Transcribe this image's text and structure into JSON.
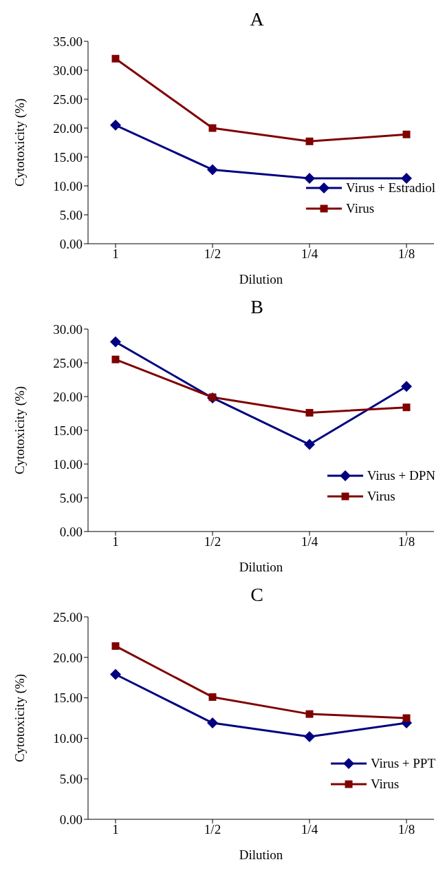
{
  "chart_data": [
    {
      "type": "line",
      "title": "A",
      "xlabel": "Dilution",
      "ylabel": "Cytotoxicity (%)",
      "categories": [
        "1",
        "1/2",
        "1/4",
        "1/8"
      ],
      "ylim": [
        0,
        35
      ],
      "yticks": [
        {
          "value": 0,
          "label": "0.00"
        },
        {
          "value": 5,
          "label": "5.00"
        },
        {
          "value": 10,
          "label": "10.00"
        },
        {
          "value": 15,
          "label": "15.00"
        },
        {
          "value": 20,
          "label": "20.00"
        },
        {
          "value": 25,
          "label": "25.00"
        },
        {
          "value": 30,
          "label": "30.00"
        },
        {
          "value": 35,
          "label": "35.00"
        }
      ],
      "grid": false,
      "legend": "bottom right",
      "line_style": "solid",
      "series": [
        {
          "name": "Virus + Estradiol",
          "color": "#000080",
          "marker": "diamond",
          "values": [
            20.5,
            12.8,
            11.3,
            11.3
          ]
        },
        {
          "name": "Virus",
          "color": "#800000",
          "marker": "square",
          "values": [
            32.0,
            20.0,
            17.7,
            18.9
          ]
        }
      ]
    },
    {
      "type": "line",
      "title": "B",
      "xlabel": "Dilution",
      "ylabel": "Cytotoxicity (%)",
      "categories": [
        "1",
        "1/2",
        "1/4",
        "1/8"
      ],
      "ylim": [
        0,
        30
      ],
      "yticks": [
        {
          "value": 0,
          "label": "0.00"
        },
        {
          "value": 5,
          "label": "5.00"
        },
        {
          "value": 10,
          "label": "10.00"
        },
        {
          "value": 15,
          "label": "15.00"
        },
        {
          "value": 20,
          "label": "20.00"
        },
        {
          "value": 25,
          "label": "25.00"
        },
        {
          "value": 30,
          "label": "30.00"
        }
      ],
      "grid": false,
      "legend": "bottom right",
      "line_style": "solid",
      "series": [
        {
          "name": "Virus + DPN",
          "color": "#000080",
          "marker": "diamond",
          "values": [
            28.1,
            19.8,
            12.9,
            21.5
          ]
        },
        {
          "name": "Virus",
          "color": "#800000",
          "marker": "square",
          "values": [
            25.5,
            19.9,
            17.6,
            18.4
          ]
        }
      ]
    },
    {
      "type": "line",
      "title": "C",
      "xlabel": "Dilution",
      "ylabel": "Cytotoxicity (%)",
      "categories": [
        "1",
        "1/2",
        "1/4",
        "1/8"
      ],
      "ylim": [
        0,
        25
      ],
      "yticks": [
        {
          "value": 0,
          "label": "0.00"
        },
        {
          "value": 5,
          "label": "5.00"
        },
        {
          "value": 10,
          "label": "10.00"
        },
        {
          "value": 15,
          "label": "15.00"
        },
        {
          "value": 20,
          "label": "20.00"
        },
        {
          "value": 25,
          "label": "25.00"
        }
      ],
      "grid": false,
      "legend": "bottom right",
      "line_style": "solid",
      "series": [
        {
          "name": "Virus + PPT",
          "color": "#000080",
          "marker": "diamond",
          "values": [
            17.9,
            11.9,
            10.2,
            11.9
          ]
        },
        {
          "name": "Virus",
          "color": "#800000",
          "marker": "square",
          "values": [
            21.4,
            15.1,
            13.0,
            12.5
          ]
        }
      ]
    }
  ]
}
